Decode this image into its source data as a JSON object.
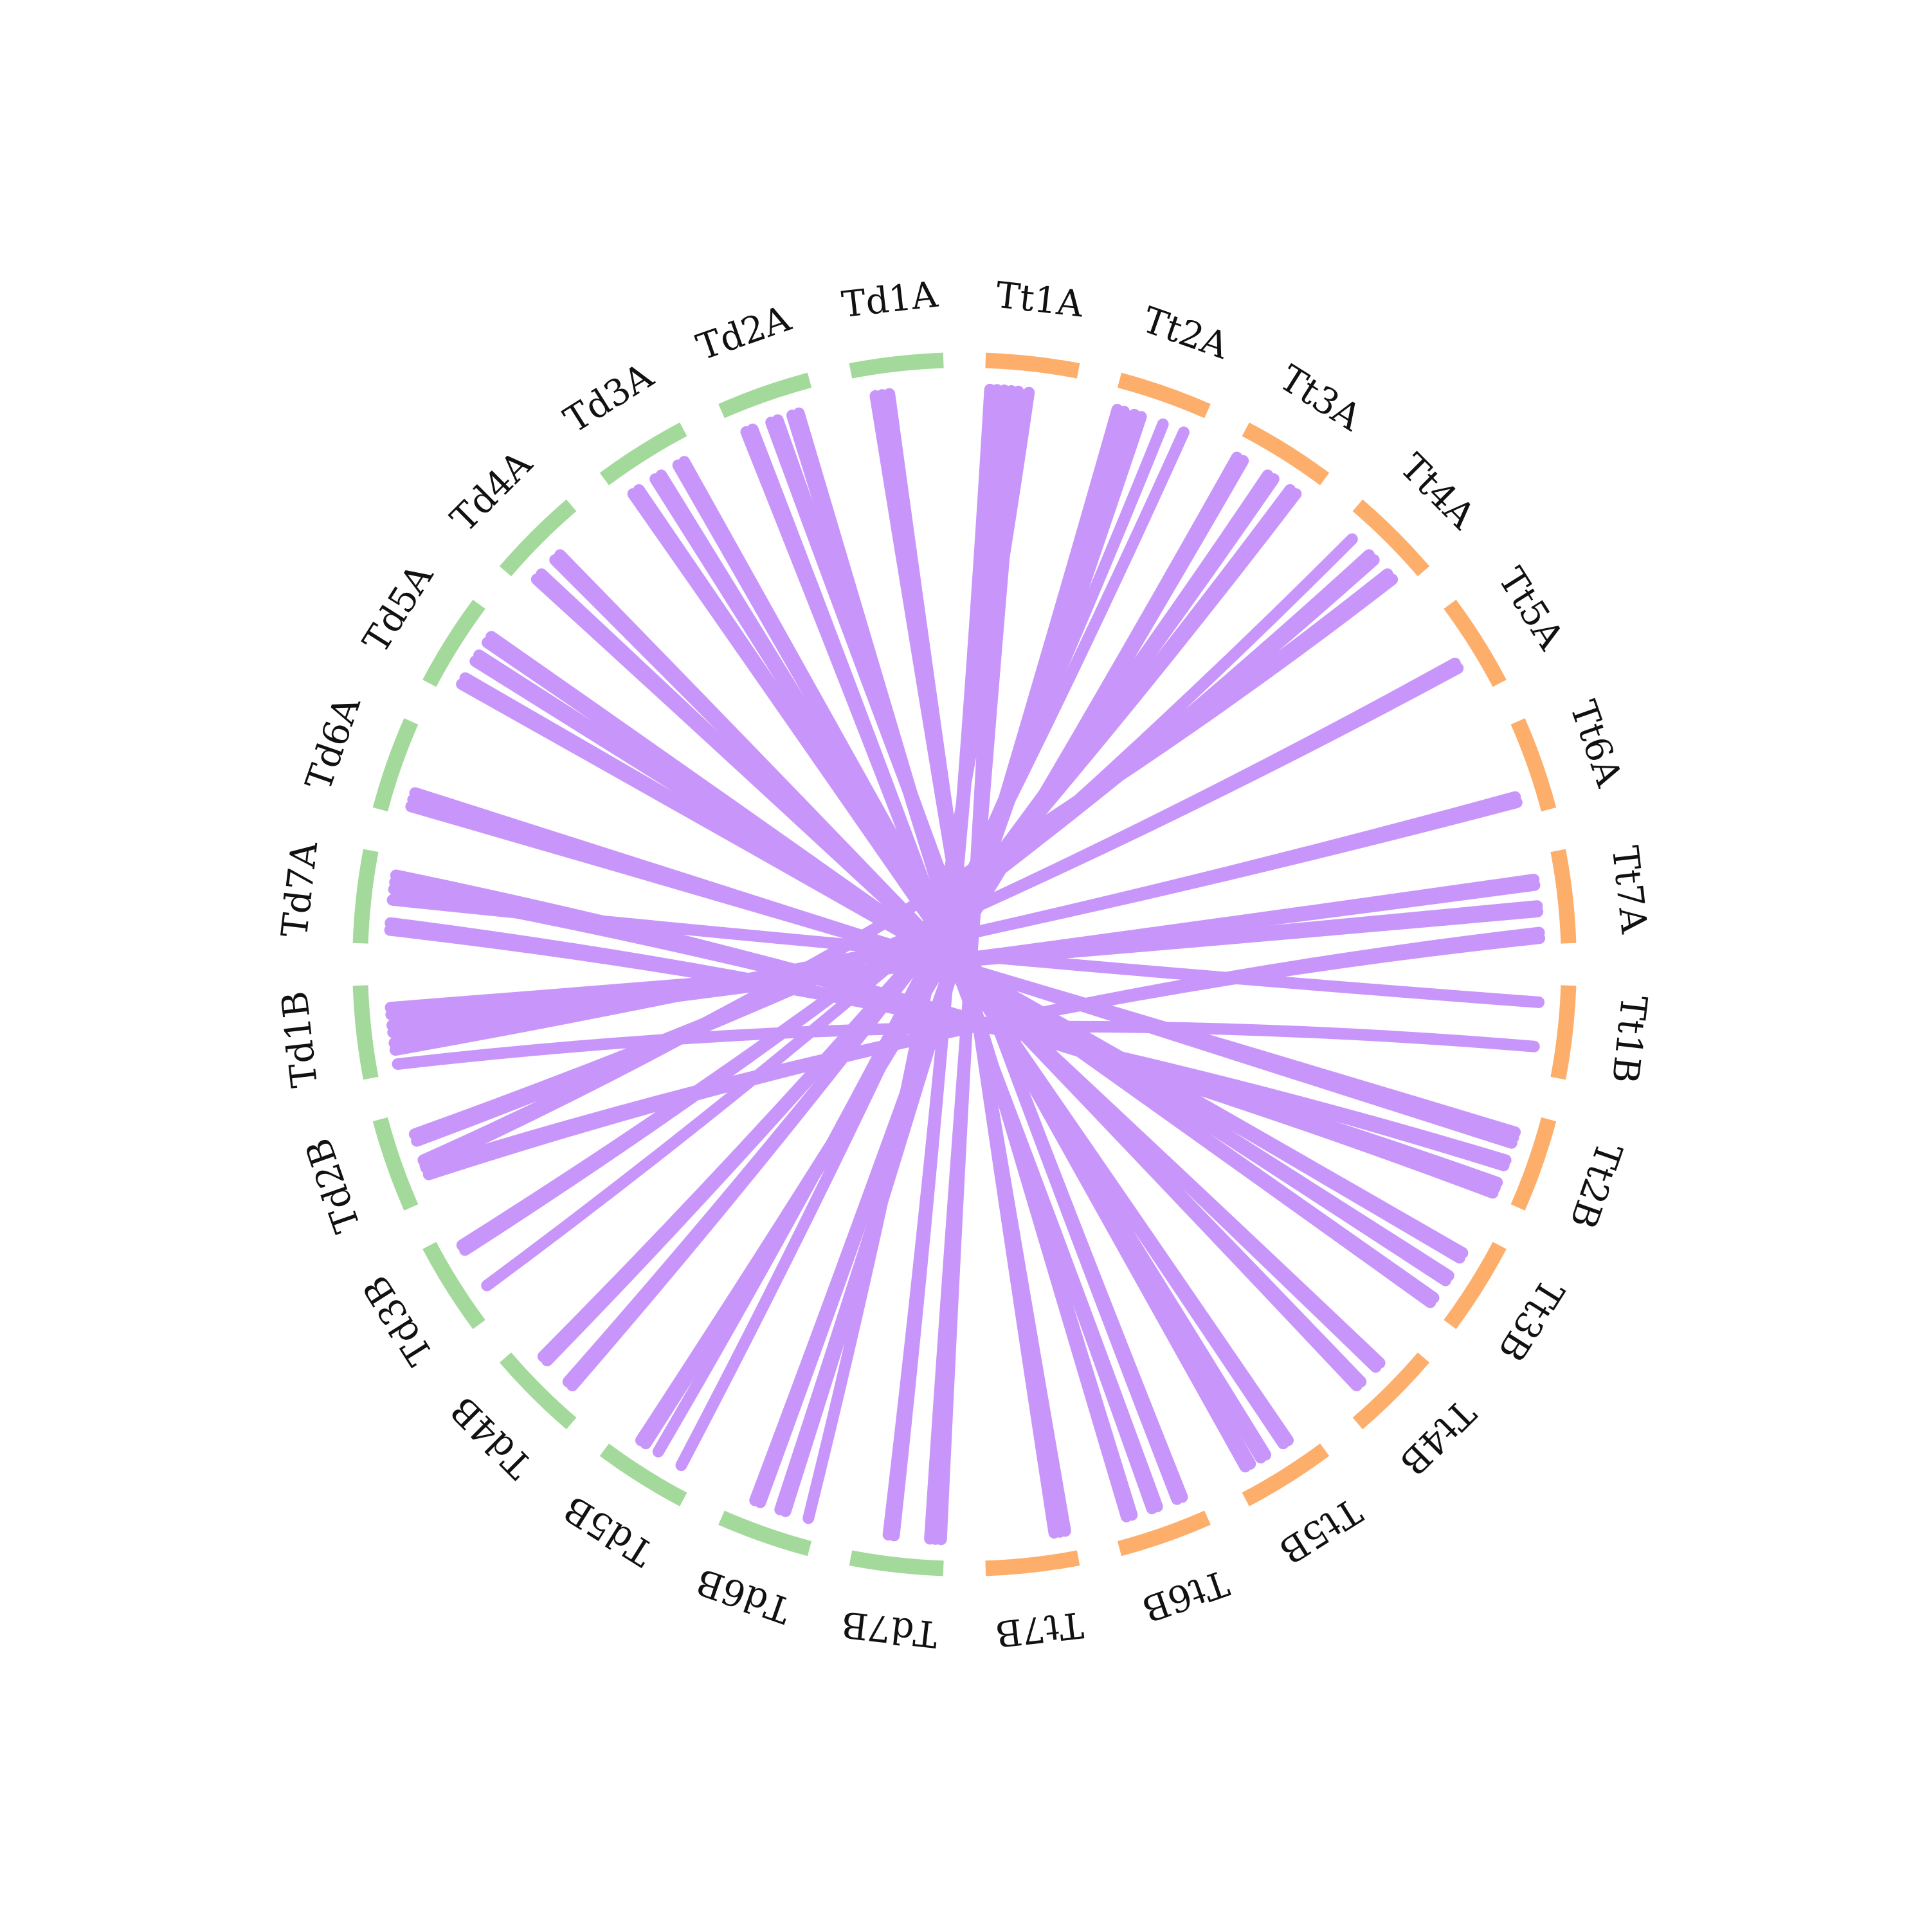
{
  "colors": {
    "genome_td": "#a3d99a",
    "genome_tt": "#fdae6b",
    "links": "#c896fa",
    "background": "#ffffff",
    "label_text": "#111111"
  },
  "td_chromosomes": [
    "Td1A",
    "Td2A",
    "Td3A",
    "Td4A",
    "Td5A",
    "Td6A",
    "Td7A",
    "Td1B",
    "Td2B",
    "Td3B",
    "Td4B",
    "Td5B",
    "Td6B",
    "Td7B"
  ],
  "tt_chromosomes": [
    "Tt1A",
    "Tt2A",
    "Tt3A",
    "Tt4A",
    "Tt5A",
    "Tt6A",
    "Tt7A",
    "Tt1B",
    "Tt2B",
    "Tt3B",
    "Tt4B",
    "Tt5B",
    "Tt6B",
    "Tt7B"
  ],
  "links": [
    {
      "from": "Td1A",
      "from_pos": 0.3,
      "to": "Tt7B",
      "to_pos": 0.15,
      "bundle": 3
    },
    {
      "from": "Tt1A",
      "from_pos": 0.3,
      "to": "Td7B",
      "to_pos": 0.1,
      "bundle": 3
    },
    {
      "from": "Tt1A",
      "from_pos": 0.1,
      "to": "Td7B",
      "to_pos": 0.6,
      "bundle": 2
    },
    {
      "from": "Tt1A",
      "from_pos": 0.5,
      "to": "Td6B",
      "to_pos": 0.1,
      "bundle": 1
    },
    {
      "from": "Tt2A",
      "from_pos": 0.1,
      "to": "Td6B",
      "to_pos": 0.4,
      "bundle": 2
    },
    {
      "from": "Tt2A",
      "from_pos": 0.3,
      "to": "Td6B",
      "to_pos": 0.7,
      "bundle": 2
    },
    {
      "from": "Tt2A",
      "from_pos": 0.6,
      "to": "Td5B",
      "to_pos": 0.2,
      "bundle": 1
    },
    {
      "from": "Tt2A",
      "from_pos": 0.85,
      "to": "Td5B",
      "to_pos": 0.5,
      "bundle": 1
    },
    {
      "from": "Tt3A",
      "from_pos": 0.1,
      "to": "Td5B",
      "to_pos": 0.7,
      "bundle": 2
    },
    {
      "from": "Tt3A",
      "from_pos": 0.5,
      "to": "Td4B",
      "to_pos": 0.3,
      "bundle": 2
    },
    {
      "from": "Tt3A",
      "from_pos": 0.8,
      "to": "Td4B",
      "to_pos": 0.7,
      "bundle": 2
    },
    {
      "from": "Tt4A",
      "from_pos": 0.2,
      "to": "Td3B",
      "to_pos": 0.3,
      "bundle": 1
    },
    {
      "from": "Tt4A",
      "from_pos": 0.5,
      "to": "Td3B",
      "to_pos": 0.8,
      "bundle": 2
    },
    {
      "from": "Tt4A",
      "from_pos": 0.8,
      "to": "Td2B",
      "to_pos": 0.4,
      "bundle": 2
    },
    {
      "from": "Td2A",
      "from_pos": 0.2,
      "to": "Tt6B",
      "to_pos": 0.5,
      "bundle": 2
    },
    {
      "from": "Td2A",
      "from_pos": 0.5,
      "to": "Tt6B",
      "to_pos": 0.2,
      "bundle": 2
    },
    {
      "from": "Td2A",
      "from_pos": 0.75,
      "to": "Tt6B",
      "to_pos": 0.8,
      "bundle": 2
    },
    {
      "from": "Td3A",
      "from_pos": 0.2,
      "to": "Tt5B",
      "to_pos": 0.3,
      "bundle": 2
    },
    {
      "from": "Td3A",
      "from_pos": 0.5,
      "to": "Tt5B",
      "to_pos": 0.6,
      "bundle": 2
    },
    {
      "from": "Td3A",
      "from_pos": 0.8,
      "to": "Tt5B",
      "to_pos": 0.8,
      "bundle": 2
    },
    {
      "from": "Td4A",
      "from_pos": 0.2,
      "to": "Tt4B",
      "to_pos": 0.4,
      "bundle": 2
    },
    {
      "from": "Td4A",
      "from_pos": 0.5,
      "to": "Tt4B",
      "to_pos": 0.7,
      "bundle": 2
    },
    {
      "from": "Td5A",
      "from_pos": 0.2,
      "to": "Tt3B",
      "to_pos": 0.3,
      "bundle": 2
    },
    {
      "from": "Td5A",
      "from_pos": 0.5,
      "to": "Tt3B",
      "to_pos": 0.6,
      "bundle": 2
    },
    {
      "from": "Td5A",
      "from_pos": 0.75,
      "to": "Tt3B",
      "to_pos": 0.9,
      "bundle": 2
    },
    {
      "from": "Td6A",
      "from_pos": 0.2,
      "to": "Tt2B",
      "to_pos": 0.3,
      "bundle": 3
    },
    {
      "from": "Td7A",
      "from_pos": 0.2,
      "to": "Tt2B",
      "to_pos": 0.6,
      "bundle": 2
    },
    {
      "from": "Td7A",
      "from_pos": 0.5,
      "to": "Tt1B",
      "to_pos": 0.2,
      "bundle": 1
    },
    {
      "from": "Td7A",
      "from_pos": 0.7,
      "to": "Tt2B",
      "to_pos": 0.9,
      "bundle": 3
    },
    {
      "from": "Td1B",
      "from_pos": 0.1,
      "to": "Tt1B",
      "to_pos": 0.7,
      "bundle": 1
    },
    {
      "from": "Td1B",
      "from_pos": 0.3,
      "to": "Tt6A",
      "to_pos": 0.8,
      "bundle": 2
    },
    {
      "from": "Td1B",
      "from_pos": 0.5,
      "to": "Tt7A",
      "to_pos": 0.3,
      "bundle": 2
    },
    {
      "from": "Td1B",
      "from_pos": 0.7,
      "to": "Tt7A",
      "to_pos": 0.6,
      "bundle": 2
    },
    {
      "from": "Td2B",
      "from_pos": 0.3,
      "to": "Tt7A",
      "to_pos": 0.9,
      "bundle": 2
    },
    {
      "from": "Td2B",
      "from_pos": 0.7,
      "to": "Tt5A",
      "to_pos": 0.6,
      "bundle": 2
    }
  ]
}
